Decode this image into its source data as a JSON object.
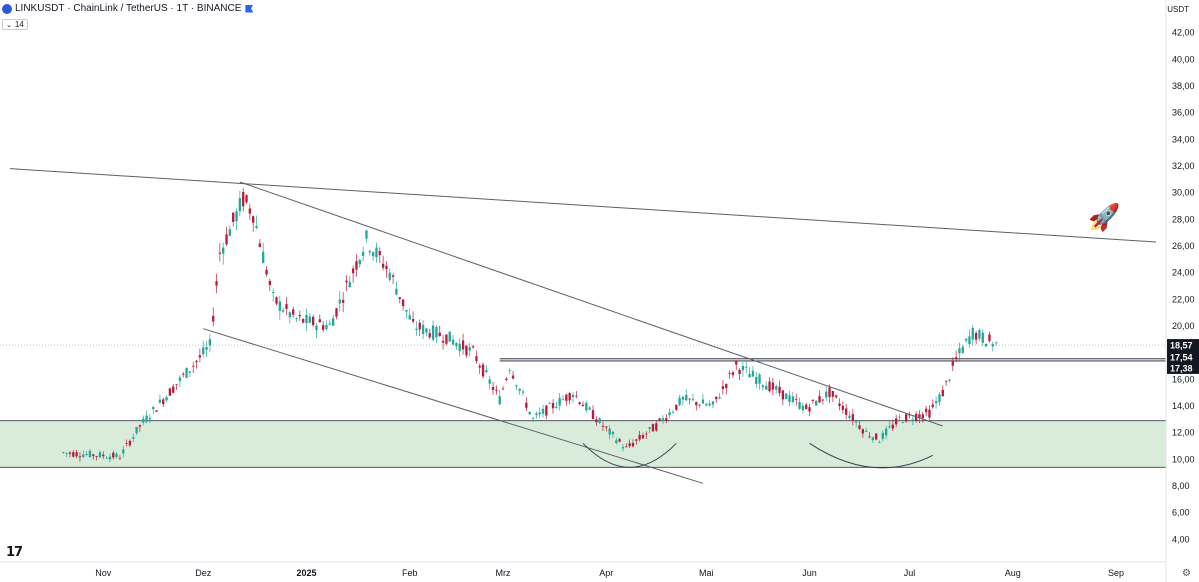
{
  "header": {
    "symbol": "LINKUSDT",
    "name": "ChainLink / TetherUS · 1T · BINANCE"
  },
  "indicator_tag": "14",
  "price_axis_title": "USDT",
  "icons": [
    "chainlink-coin-icon",
    "flag-icon",
    "rocket-icon",
    "tradingview-logo-icon",
    "gear-icon"
  ],
  "colors": {
    "up": "#26a69a",
    "down": "#b71c3c",
    "zone_fill": "#d9ecd9",
    "label_bg": "#131722",
    "line": "#5d606b"
  },
  "chart_data": {
    "type": "candlestick",
    "title": "LINKUSDT · ChainLink / TetherUS · 1T · BINANCE",
    "y_ticks": [
      "4,00",
      "6,00",
      "8,00",
      "10,00",
      "12,00",
      "14,00",
      "16,00",
      "18,00",
      "20,00",
      "22,00",
      "24,00",
      "26,00",
      "28,00",
      "30,00",
      "32,00",
      "34,00",
      "36,00",
      "38,00",
      "40,00",
      "42,00"
    ],
    "x_ticks": [
      "Nov",
      "Dez",
      "2025",
      "Feb",
      "Mrz",
      "Apr",
      "Mai",
      "Jun",
      "Jul",
      "Aug",
      "Sep"
    ],
    "ylim": [
      2.3,
      43.7
    ],
    "price_labels": [
      "18,57",
      "17,54",
      "17,38"
    ],
    "current_price": 18.57,
    "zone": [
      9.4,
      12.9
    ],
    "resistance": [
      17.54,
      17.38
    ],
    "key_points": [
      {
        "date": "2024-10-20",
        "price": 10.5
      },
      {
        "date": "2024-11-06",
        "price": 10.2
      },
      {
        "date": "2024-11-12",
        "price": 12.5
      },
      {
        "date": "2024-12-03",
        "price": 18.5
      },
      {
        "date": "2024-12-06",
        "price": 25.5
      },
      {
        "date": "2024-12-13",
        "price": 29.5
      },
      {
        "date": "2024-12-16",
        "price": 28.5
      },
      {
        "date": "2024-12-22",
        "price": 22.0
      },
      {
        "date": "2024-12-29",
        "price": 20.5
      },
      {
        "date": "2025-01-08",
        "price": 20.0
      },
      {
        "date": "2025-01-19",
        "price": 26.5
      },
      {
        "date": "2025-01-26",
        "price": 24.0
      },
      {
        "date": "2025-02-02",
        "price": 20.0
      },
      {
        "date": "2025-02-12",
        "price": 19.2
      },
      {
        "date": "2025-02-20",
        "price": 18.0
      },
      {
        "date": "2025-02-28",
        "price": 14.5
      },
      {
        "date": "2025-03-03",
        "price": 17.0
      },
      {
        "date": "2025-03-10",
        "price": 13.0
      },
      {
        "date": "2025-03-22",
        "price": 15.0
      },
      {
        "date": "2025-03-31",
        "price": 12.5
      },
      {
        "date": "2025-04-07",
        "price": 10.8
      },
      {
        "date": "2025-04-16",
        "price": 12.5
      },
      {
        "date": "2025-04-24",
        "price": 14.5
      },
      {
        "date": "2025-05-03",
        "price": 14.0
      },
      {
        "date": "2025-05-10",
        "price": 17.0
      },
      {
        "date": "2025-05-20",
        "price": 15.5
      },
      {
        "date": "2025-05-31",
        "price": 13.8
      },
      {
        "date": "2025-06-07",
        "price": 15.0
      },
      {
        "date": "2025-06-18",
        "price": 12.0
      },
      {
        "date": "2025-06-22",
        "price": 11.5
      },
      {
        "date": "2025-06-28",
        "price": 13.0
      },
      {
        "date": "2025-07-07",
        "price": 13.5
      },
      {
        "date": "2025-07-11",
        "price": 15.0
      },
      {
        "date": "2025-07-15",
        "price": 17.5
      },
      {
        "date": "2025-07-20",
        "price": 19.5
      },
      {
        "date": "2025-07-27",
        "price": 18.6
      }
    ],
    "trendlines": [
      {
        "from": {
          "date": "2024-10-04",
          "price": 31.8
        },
        "to": {
          "date": "2025-09-13",
          "price": 26.3
        }
      },
      {
        "from": {
          "date": "2024-12-12",
          "price": 30.8
        },
        "to": {
          "date": "2025-07-11",
          "price": 12.5
        }
      },
      {
        "from": {
          "date": "2024-12-01",
          "price": 19.8
        },
        "to": {
          "date": "2025-04-30",
          "price": 8.2
        }
      }
    ],
    "arcs": [
      {
        "from": {
          "date": "2025-03-25",
          "price": 11.2
        },
        "bottom": {
          "date": "2025-04-08",
          "price": 9.4
        },
        "to": {
          "date": "2025-04-22",
          "price": 11.2
        }
      },
      {
        "from": {
          "date": "2025-06-01",
          "price": 11.2
        },
        "bottom": {
          "date": "2025-06-20",
          "price": 9.4
        },
        "to": {
          "date": "2025-07-08",
          "price": 10.3
        }
      }
    ]
  }
}
